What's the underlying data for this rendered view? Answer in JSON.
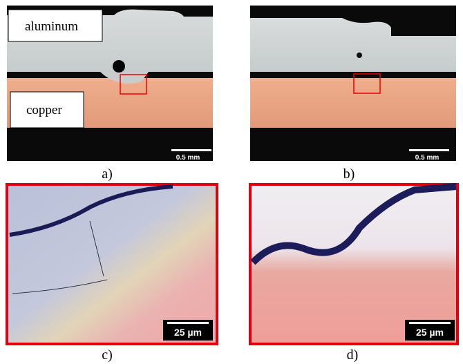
{
  "panels": [
    {
      "caption": "a)",
      "labels": [
        "aluminum",
        "copper"
      ],
      "scale_bar": "0.5 mm"
    },
    {
      "caption": "b)",
      "scale_bar": "0.5 mm"
    },
    {
      "caption": "c)",
      "scale_bar": "25 µm"
    },
    {
      "caption": "d)",
      "scale_bar": "25 µm"
    }
  ]
}
